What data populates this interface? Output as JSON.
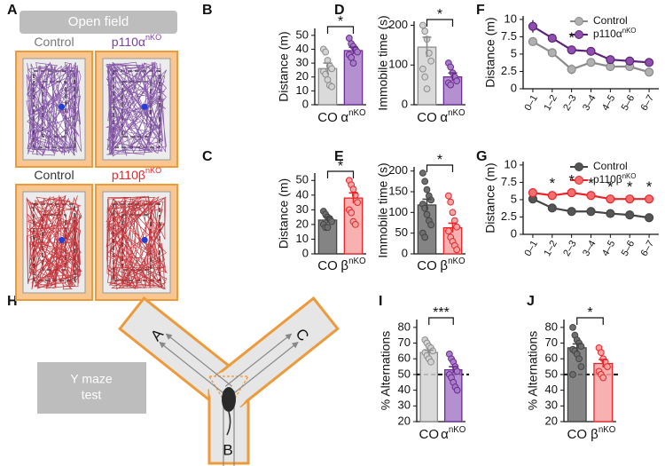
{
  "panels": {
    "letters": [
      "A",
      "B",
      "C",
      "D",
      "E",
      "F",
      "G",
      "H",
      "I",
      "J"
    ]
  },
  "open_field": {
    "title": "Open field",
    "labels": [
      {
        "text": "Control"
      },
      {
        "text": "p110α",
        "sup": "nKO"
      },
      {
        "text": "Control"
      },
      {
        "text": "p110β",
        "sup": "nKO"
      }
    ]
  },
  "y_maze": {
    "title_lines": [
      "Y maze",
      "test"
    ],
    "arms": [
      "A",
      "B",
      "C"
    ]
  },
  "chart_data": [
    {
      "type": "bar",
      "ylabel": "Distance (m)",
      "categories": [
        "CO",
        "α"
      ],
      "category_superscripts": {
        "1": "nKO"
      },
      "values": [
        26,
        39
      ],
      "errors": [
        4,
        2.5
      ],
      "points": [
        [
          40,
          38,
          32,
          28,
          26,
          24,
          22,
          18,
          14,
          13
        ],
        [
          48,
          44,
          42,
          40,
          38,
          36,
          34,
          30
        ]
      ],
      "colors": [
        "#d3d3d3",
        "#a77cc8"
      ],
      "edge_colors": [
        "#8c8c8c",
        "#6a2c8e"
      ],
      "ylim": [
        0,
        55
      ],
      "yticks": [
        0,
        10,
        20,
        30,
        40,
        50
      ],
      "annotations": [
        {
          "text": "*"
        }
      ]
    },
    {
      "type": "bar",
      "ylabel": "Distance (m)",
      "categories": [
        "CO",
        "β"
      ],
      "category_superscripts": {
        "1": "nKO"
      },
      "values": [
        23,
        38
      ],
      "errors": [
        2,
        3.5
      ],
      "points": [
        [
          29,
          27,
          25,
          24,
          22,
          20,
          18,
          18
        ],
        [
          50,
          47,
          44,
          40,
          35,
          30,
          28,
          22,
          20
        ]
      ],
      "colors": [
        "#6e6e6e",
        "#f6a3a3"
      ],
      "edge_colors": [
        "#444444",
        "#e8262a"
      ],
      "ylim": [
        0,
        55
      ],
      "yticks": [
        0,
        10,
        20,
        30,
        40,
        50
      ],
      "annotations": [
        {
          "text": "*"
        }
      ]
    },
    {
      "type": "bar",
      "ylabel": "Immobile time (s)",
      "categories": [
        "CO",
        "α"
      ],
      "category_superscripts": {
        "1": "nKO"
      },
      "values": [
        145,
        70
      ],
      "errors": [
        25,
        10
      ],
      "points": [
        [
          200,
          185,
          165,
          130,
          110,
          90,
          70,
          40
        ],
        [
          105,
          95,
          80,
          70,
          60,
          55,
          50
        ]
      ],
      "colors": [
        "#d3d3d3",
        "#a77cc8"
      ],
      "edge_colors": [
        "#8c8c8c",
        "#6a2c8e"
      ],
      "ylim": [
        0,
        210
      ],
      "yticks": [
        0,
        100,
        200
      ],
      "annotations": [
        {
          "text": "*"
        }
      ]
    },
    {
      "type": "bar",
      "ylabel": "Immobile time (s)",
      "categories": [
        "CO",
        "β"
      ],
      "category_superscripts": {
        "1": "nKO"
      },
      "values": [
        118,
        63
      ],
      "errors": [
        14,
        11
      ],
      "points": [
        [
          195,
          175,
          155,
          140,
          130,
          120,
          110,
          95,
          80,
          70,
          50,
          40
        ],
        [
          140,
          125,
          100,
          80,
          65,
          55,
          40,
          30,
          20,
          10
        ]
      ],
      "colors": [
        "#6e6e6e",
        "#f6a3a3"
      ],
      "edge_colors": [
        "#444444",
        "#e8262a"
      ],
      "ylim": [
        0,
        210
      ],
      "yticks": [
        0,
        50,
        100,
        150,
        200
      ],
      "annotations": [
        {
          "text": "*"
        }
      ]
    },
    {
      "type": "line",
      "ylabel": "Distance (m)",
      "categories": [
        "0–1",
        "1–2",
        "2–3",
        "3–4",
        "4–5",
        "5–6",
        "6–7"
      ],
      "series": [
        {
          "name": "Control",
          "color": "#b0b0b0",
          "line_color": "#8a8a8a",
          "values": [
            6.8,
            5.2,
            2.8,
            3.8,
            3.2,
            3.2,
            2.4
          ],
          "errors": [
            0.5,
            0.6,
            0.7,
            0.4,
            0.5,
            0.4,
            0.5
          ]
        },
        {
          "name": "p110α",
          "name_sup": "nKO",
          "color": "#8e4fae",
          "line_color": "#5c2476",
          "values": [
            9,
            7.3,
            5.6,
            5.4,
            4.2,
            4,
            3.8
          ],
          "errors": [
            0.9,
            0.6,
            0.5,
            0.3,
            0.4,
            0.3,
            0.3
          ]
        }
      ],
      "ylim": [
        0,
        10.5
      ],
      "yticks": [
        0,
        2.5,
        5,
        7.5,
        10
      ],
      "legend": "upper right",
      "annotations": [
        {
          "text": "*",
          "category": "2–3"
        }
      ]
    },
    {
      "type": "line",
      "ylabel": "Distance (m)",
      "categories": [
        "0–1",
        "1–2",
        "2–3",
        "3–4",
        "4–5",
        "5–6",
        "6–7"
      ],
      "series": [
        {
          "name": "Control",
          "color": "#555555",
          "line_color": "#444444",
          "values": [
            5.1,
            3.8,
            3.3,
            3.3,
            3.0,
            2.8,
            2.4
          ],
          "errors": [
            0.3,
            0.2,
            0.2,
            0.2,
            0.2,
            0.2,
            0.2
          ]
        },
        {
          "name": "p110β",
          "name_sup": "nKO",
          "color": "#f07070",
          "line_color": "#e8262a",
          "values": [
            6.0,
            5.6,
            6.0,
            5.6,
            5.1,
            5.1,
            5.1
          ],
          "errors": [
            0.6,
            0.5,
            0.5,
            0.5,
            0.5,
            0.5,
            0.5
          ]
        }
      ],
      "ylim": [
        0,
        10.5
      ],
      "yticks": [
        0,
        2.5,
        5,
        7.5,
        10
      ],
      "legend": "upper right",
      "annotations": [
        {
          "text": "*",
          "category": "1–2"
        },
        {
          "text": "*",
          "category": "2–3"
        },
        {
          "text": "*",
          "category": "3–4"
        },
        {
          "text": "*",
          "category": "4–5"
        },
        {
          "text": "*",
          "category": "5–6"
        },
        {
          "text": "*",
          "category": "6–7"
        }
      ]
    },
    {
      "type": "bar",
      "ylabel": "% Alternations",
      "categories": [
        "CO",
        "α"
      ],
      "category_superscripts": {
        "1": "nKO"
      },
      "values": [
        64,
        53
      ],
      "errors": [
        1.5,
        2
      ],
      "points": [
        [
          72,
          70,
          68,
          67,
          65,
          64,
          62,
          60,
          58
        ],
        [
          63,
          60,
          58,
          55,
          52,
          50,
          48,
          45,
          42,
          40
        ]
      ],
      "colors": [
        "#d3d3d3",
        "#a77cc8"
      ],
      "edge_colors": [
        "#8c8c8c",
        "#6a2c8e"
      ],
      "ylim": [
        20,
        85
      ],
      "yticks": [
        20,
        30,
        40,
        50,
        60,
        70,
        80
      ],
      "reference_line": 50,
      "annotations": [
        {
          "text": "***"
        }
      ]
    },
    {
      "type": "bar",
      "ylabel": "% Alternations",
      "categories": [
        "CO",
        "β"
      ],
      "category_superscripts": {
        "1": "nKO"
      },
      "values": [
        67,
        57
      ],
      "errors": [
        2.5,
        2.5
      ],
      "points": [
        [
          80,
          75,
          72,
          70,
          68,
          66,
          65,
          63,
          60,
          55,
          50
        ],
        [
          67,
          64,
          60,
          58,
          55,
          52,
          50,
          48
        ]
      ],
      "colors": [
        "#6e6e6e",
        "#f6a3a3"
      ],
      "edge_colors": [
        "#444444",
        "#e8262a"
      ],
      "ylim": [
        20,
        85
      ],
      "yticks": [
        20,
        30,
        40,
        50,
        60,
        70,
        80
      ],
      "reference_line": 50,
      "annotations": [
        {
          "text": "*"
        }
      ]
    }
  ]
}
